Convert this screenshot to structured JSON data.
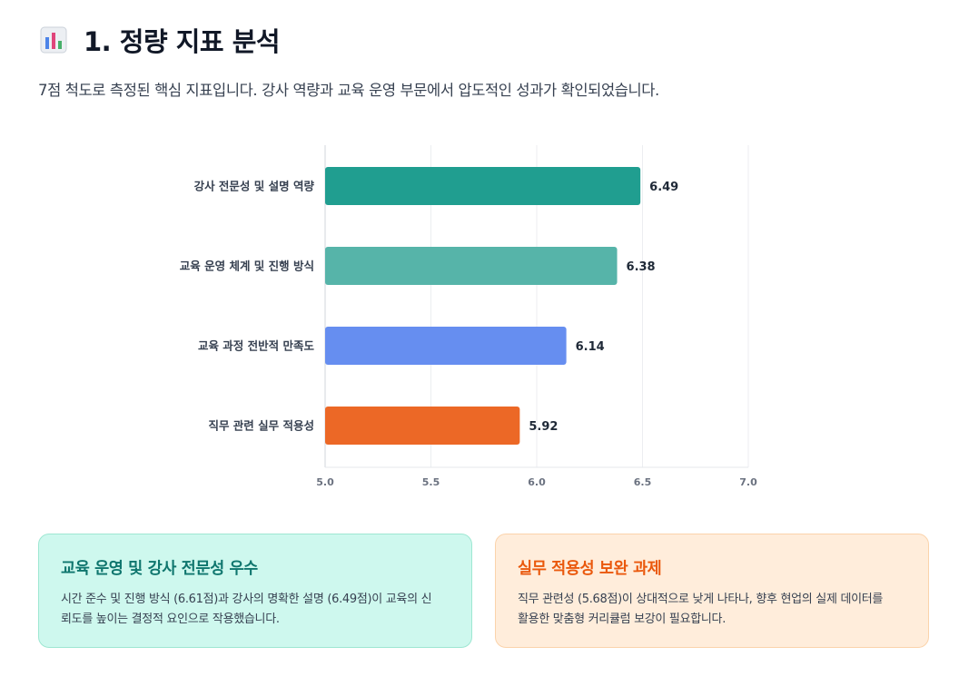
{
  "header": {
    "icon": "bar-chart-icon",
    "title": "1. 정량 지표 분석",
    "description": "7점 척도로 측정된 핵심 지표입니다. 강사 역량과 교육 운영 부문에서 압도적인 성과가 확인되었습니다."
  },
  "chart_data": {
    "type": "bar",
    "orientation": "horizontal",
    "categories": [
      "강사 전문성 및 설명 역량",
      "교육 운영 체계 및 진행 방식",
      "교육 과정 전반적 만족도",
      "직무 관련 실무 적용성"
    ],
    "values": [
      6.49,
      6.38,
      6.14,
      5.92
    ],
    "value_labels": [
      "6.49",
      "6.38",
      "6.14",
      "5.92"
    ],
    "colors": [
      "#209e90",
      "#56b4a9",
      "#668ef0",
      "#ec6826"
    ],
    "xlim": [
      5.0,
      7.0
    ],
    "xticks": [
      5.0,
      5.5,
      6.0,
      6.5,
      7.0
    ],
    "xtick_labels": [
      "5.0",
      "5.5",
      "6.0",
      "6.5",
      "7.0"
    ],
    "grid": true,
    "legend": "none"
  },
  "cards": {
    "left": {
      "title": "교육 운영 및 강사 전문성 우수",
      "line1": "시간 준수 및 진행 방식 (6.61점)과 강사의 명확한 설명 (6.49점)이 교육의 신",
      "line2": "뢰도를 높이는 결정적 요인으로 작용했습니다.",
      "accent": "#0f766e"
    },
    "right": {
      "title": "실무 적용성 보완 과제",
      "line1": "직무 관련성 (5.68점)이 상대적으로 낮게 나타나, 향후 현업의 실제 데이터를",
      "line2": "활용한 맞춤형 커리큘럼 보강이 필요합니다.",
      "accent": "#ea580c"
    }
  }
}
